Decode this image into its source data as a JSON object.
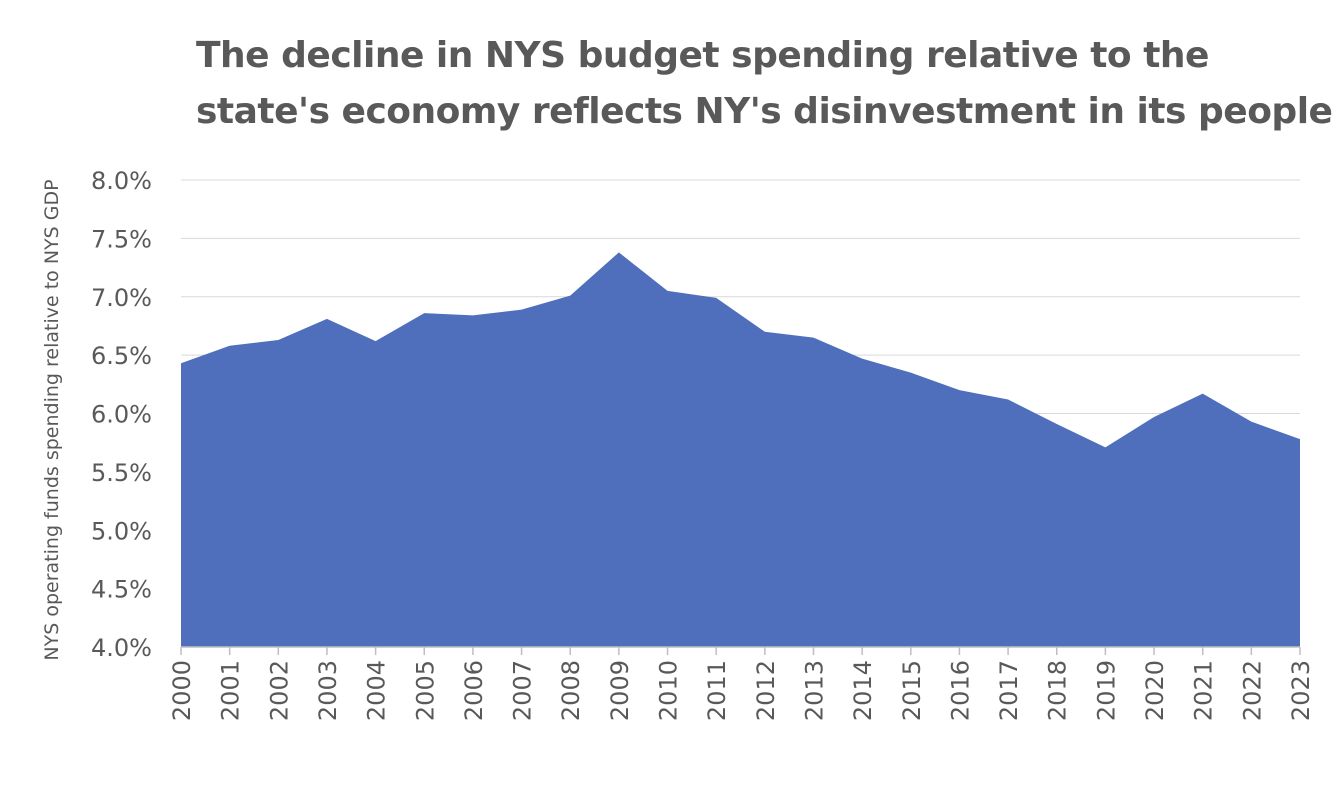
{
  "chart_data": {
    "type": "area",
    "title_lines": [
      "The decline in NYS budget spending relative to the",
      "state's economy reflects NY's disinvestment in its people"
    ],
    "xlabel": "",
    "ylabel": "NYS operating funds spending relative to NYS GDP",
    "x": [
      "2000",
      "2001",
      "2002",
      "2003",
      "2004",
      "2005",
      "2006",
      "2007",
      "2008",
      "2009",
      "2010",
      "2011",
      "2012",
      "2013",
      "2014",
      "2015",
      "2016",
      "2017",
      "2018",
      "2019",
      "2020",
      "2021",
      "2022",
      "2023"
    ],
    "series": [
      {
        "values": [
          6.43,
          6.58,
          6.63,
          6.81,
          6.62,
          6.86,
          6.84,
          6.89,
          7.01,
          7.38,
          7.05,
          6.99,
          6.7,
          6.65,
          6.47,
          6.35,
          6.2,
          6.12,
          5.91,
          5.71,
          5.97,
          6.17,
          5.93,
          5.78
        ],
        "color": "#4f6fbd"
      }
    ],
    "yticks": [
      "4.0%",
      "4.5%",
      "5.0%",
      "5.5%",
      "6.0%",
      "6.5%",
      "7.0%",
      "7.5%",
      "8.0%"
    ],
    "ylim": [
      4.0,
      8.0
    ],
    "grid": true,
    "legend": "none"
  }
}
